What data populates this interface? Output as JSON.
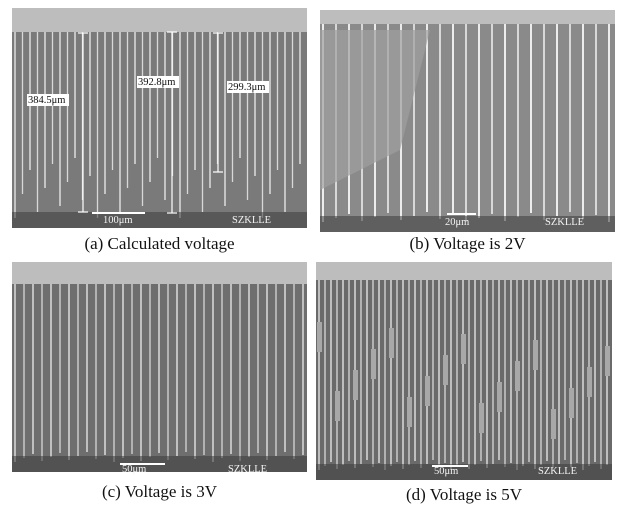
{
  "panels": [
    {
      "caption": "(a) Calculated voltage",
      "scale_label": "100μm",
      "watermark": "SZKLLE",
      "annotations": [
        "384.5μm",
        "392.8μm",
        "299.3μm"
      ]
    },
    {
      "caption": "(b) Voltage is 2V",
      "scale_label": "20μm",
      "watermark": "SZKLLE"
    },
    {
      "caption": "(c) Voltage is 3V",
      "scale_label": "50μm",
      "watermark": "SZKLLE"
    },
    {
      "caption": "(d) Voltage is 5V",
      "scale_label": "50μm",
      "watermark": "SZKLLE"
    }
  ]
}
